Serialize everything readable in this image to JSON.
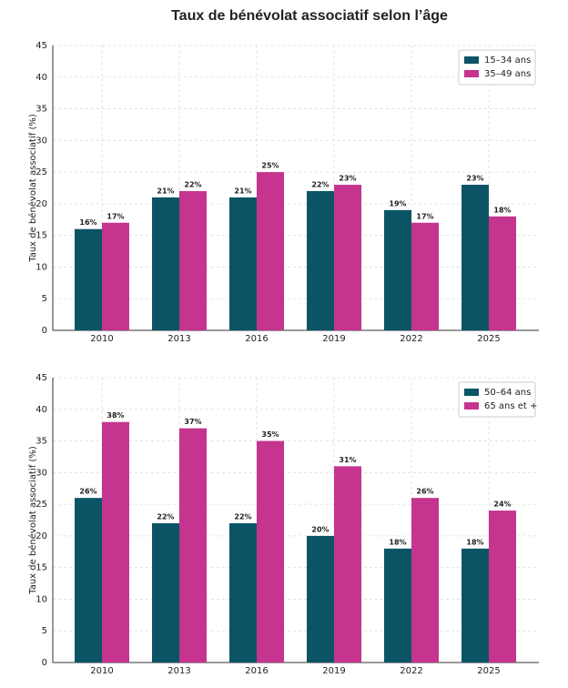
{
  "title": "Taux de bénévolat associatif selon l’âge",
  "chart_data": [
    {
      "type": "bar",
      "ylabel": "Taux de bénévolat associatif (%)",
      "categories": [
        "2010",
        "2013",
        "2016",
        "2019",
        "2022",
        "2025"
      ],
      "series": [
        {
          "name": "15–34 ans",
          "color": "#0b5466",
          "values": [
            16,
            21,
            21,
            22,
            19,
            23
          ],
          "value_labels": [
            "16%",
            "21%",
            "21%",
            "22%",
            "19%",
            "23%"
          ]
        },
        {
          "name": "35–49 ans",
          "color": "#c5348f",
          "values": [
            17,
            22,
            25,
            23,
            17,
            18
          ],
          "value_labels": [
            "17%",
            "22%",
            "25%",
            "23%",
            "17%",
            "18%"
          ]
        }
      ],
      "ylim": [
        0,
        45
      ],
      "yticks": [
        0,
        5,
        10,
        15,
        20,
        25,
        30,
        35,
        40,
        45
      ],
      "grid": true,
      "legend": "upper right"
    },
    {
      "type": "bar",
      "ylabel": "Taux de bénévolat associatif (%)",
      "categories": [
        "2010",
        "2013",
        "2016",
        "2019",
        "2022",
        "2025"
      ],
      "series": [
        {
          "name": "50–64 ans",
          "color": "#0b5466",
          "values": [
            26,
            22,
            22,
            20,
            18,
            18
          ],
          "value_labels": [
            "26%",
            "22%",
            "22%",
            "20%",
            "18%",
            "18%"
          ]
        },
        {
          "name": "65 ans et +",
          "color": "#c5348f",
          "values": [
            38,
            37,
            35,
            31,
            26,
            24
          ],
          "value_labels": [
            "38%",
            "37%",
            "35%",
            "31%",
            "26%",
            "24%"
          ]
        }
      ],
      "ylim": [
        0,
        45
      ],
      "yticks": [
        0,
        5,
        10,
        15,
        20,
        25,
        30,
        35,
        40,
        45
      ],
      "grid": true,
      "legend": "upper right"
    }
  ]
}
